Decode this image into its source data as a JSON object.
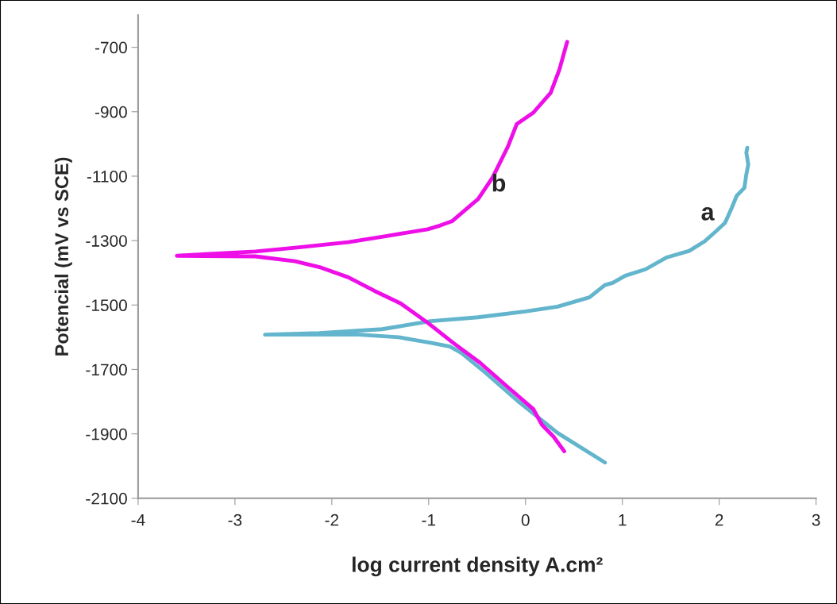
{
  "chart_data": {
    "type": "line",
    "xlabel": "log current density A.cm²",
    "ylabel": "Potencial (mV vs SCE)",
    "series": [
      {
        "name": "a",
        "color": "#62b5cc",
        "x": [
          0.82,
          0.33,
          -0.08,
          -0.41,
          -0.66,
          -0.78,
          -0.98,
          -1.31,
          -1.72,
          -2.69,
          -2.13,
          -1.48,
          -0.98,
          -0.49,
          0,
          0.33,
          0.66,
          0.82,
          0.9,
          1.03,
          1.24,
          1.46,
          1.69,
          1.85,
          1.97,
          2.06,
          2.13,
          2.18,
          2.26,
          2.28,
          2.3,
          2.28,
          2.29
        ],
        "values": [
          -1989,
          -1897,
          -1798,
          -1711,
          -1649,
          -1629,
          -1617,
          -1600,
          -1592,
          -1592,
          -1587,
          -1575,
          -1550,
          -1538,
          -1520,
          -1505,
          -1476,
          -1438,
          -1431,
          -1409,
          -1389,
          -1352,
          -1332,
          -1302,
          -1270,
          -1245,
          -1198,
          -1161,
          -1136,
          -1094,
          -1064,
          -1027,
          -1012
        ]
      },
      {
        "name": "b",
        "color": "#ee0ee8",
        "x": [
          0.4,
          0.29,
          0.17,
          0.08,
          -0.19,
          -0.47,
          -0.74,
          -1.01,
          -1.29,
          -1.56,
          -1.83,
          -2.11,
          -2.38,
          -2.79,
          -3.6,
          -2.79,
          -2.38,
          -1.83,
          -1.42,
          -1.01,
          -0.88,
          -0.76,
          -0.49,
          -0.34,
          -0.18,
          -0.09,
          0.08,
          0.26,
          0.35,
          0.43
        ],
        "values": [
          -1954,
          -1909,
          -1872,
          -1823,
          -1753,
          -1679,
          -1619,
          -1555,
          -1495,
          -1456,
          -1414,
          -1384,
          -1364,
          -1349,
          -1347,
          -1334,
          -1322,
          -1305,
          -1285,
          -1265,
          -1253,
          -1240,
          -1171,
          -1104,
          -1007,
          -938,
          -903,
          -841,
          -769,
          -683
        ]
      }
    ],
    "xlim": [
      -4,
      3
    ],
    "xticks": [
      -4,
      -3,
      -2,
      -1,
      0,
      1,
      2,
      3
    ],
    "ylim": [
      -2100,
      -600
    ],
    "yticks": [
      -2100,
      -1900,
      -1700,
      -1500,
      -1300,
      -1100,
      -900,
      -700
    ],
    "grid": false,
    "legend": false,
    "marker": "none",
    "line_style": "solid"
  }
}
